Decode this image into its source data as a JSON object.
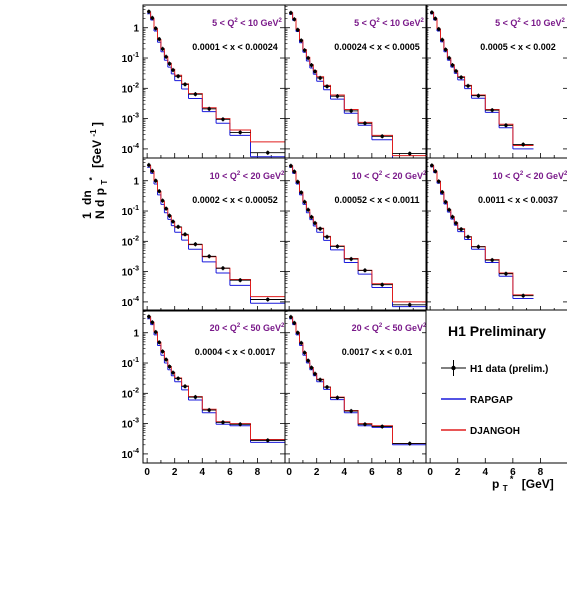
{
  "chart_data": {
    "type": "histogram-grid",
    "y_axis_label": "1/N dn/dp_T* [GeV^-1]",
    "x_axis_label": "p_T* [GeV]",
    "x_axis_text": "p",
    "x_axis_sub": "T",
    "x_axis_sup": "*",
    "x_axis_unit": "[GeV]",
    "y_axis_unit_text": "[GeV",
    "y_axis_unit_sup": "-1",
    "y_axis_unit_close": "]",
    "y_axis_num": "1",
    "y_axis_den": "N",
    "y_axis_dn": "dn",
    "y_axis_d": "d",
    "y_axis_p": "p",
    "y_axis_psub": "T",
    "y_axis_psup": "*",
    "xlim": [
      -0.3,
      10
    ],
    "ylim_log10": [
      -4.3,
      0.75
    ],
    "x_ticks": [
      0,
      2,
      4,
      6,
      8
    ],
    "y_tick_labels": [
      {
        "value": 1,
        "base": "1",
        "exp": ""
      },
      {
        "value": 0.1,
        "base": "10",
        "exp": "-1"
      },
      {
        "value": 0.01,
        "base": "10",
        "exp": "-2"
      },
      {
        "value": 0.001,
        "base": "10",
        "exp": "-3"
      },
      {
        "value": 0.0001,
        "base": "10",
        "exp": "-4"
      }
    ],
    "bin_edges": [
      0,
      0.25,
      0.5,
      0.75,
      1,
      1.25,
      1.5,
      1.75,
      2,
      2.5,
      3,
      4,
      5,
      6,
      7.5,
      10
    ],
    "series_names": [
      "H1 data (prelim.)",
      "RAPGAP",
      "DJANGOH"
    ],
    "series_colors": {
      "data": "#000000",
      "rapgap": "#1a1adc",
      "djangoh": "#e01e1e"
    },
    "panels": [
      {
        "q2_low": "5",
        "q2_high": "10",
        "q2_unit": "GeV",
        "x_low": "0.0001",
        "x_high": "0.00024",
        "empty_last_bin": false,
        "data": [
          3.4,
          2.1,
          0.95,
          0.42,
          0.2,
          0.11,
          0.065,
          0.04,
          0.025,
          0.0135,
          0.0064,
          0.0021,
          0.00095,
          0.00035,
          7.5e-05
        ],
        "rapgap": [
          2.9,
          1.8,
          0.78,
          0.33,
          0.16,
          0.085,
          0.05,
          0.03,
          0.018,
          0.0095,
          0.0046,
          0.0017,
          0.0007,
          0.00028,
          5.5e-05
        ],
        "djangoh": [
          3.3,
          2.05,
          0.92,
          0.41,
          0.2,
          0.11,
          0.067,
          0.042,
          0.027,
          0.014,
          0.0067,
          0.0023,
          0.001,
          0.00042,
          0.00017
        ]
      },
      {
        "q2_low": "5",
        "q2_high": "10",
        "q2_unit": "GeV",
        "x_low": "0.00024",
        "x_high": "0.0005",
        "empty_last_bin": false,
        "data": [
          3.1,
          1.9,
          0.85,
          0.38,
          0.18,
          0.1,
          0.058,
          0.036,
          0.022,
          0.0115,
          0.0055,
          0.0018,
          0.0007,
          0.00026,
          7e-05
        ],
        "rapgap": [
          2.8,
          1.75,
          0.75,
          0.32,
          0.155,
          0.08,
          0.047,
          0.029,
          0.017,
          0.009,
          0.0044,
          0.0015,
          0.0006,
          0.0002,
          4.5e-05
        ],
        "djangoh": [
          3.1,
          1.95,
          0.87,
          0.39,
          0.19,
          0.105,
          0.06,
          0.038,
          0.024,
          0.0125,
          0.006,
          0.002,
          0.00075,
          0.00028,
          6e-05
        ]
      },
      {
        "q2_low": "5",
        "q2_high": "10",
        "q2_unit": "GeV",
        "x_low": "0.0005",
        "x_high": "0.002",
        "empty_last_bin": true,
        "data": [
          3.2,
          2.0,
          0.9,
          0.4,
          0.19,
          0.1,
          0.058,
          0.037,
          0.023,
          0.012,
          0.0057,
          0.0019,
          0.0006,
          0.00014,
          0
        ],
        "rapgap": [
          2.9,
          1.8,
          0.78,
          0.34,
          0.16,
          0.085,
          0.05,
          0.031,
          0.019,
          0.0098,
          0.0047,
          0.0016,
          0.0005,
          0.0001,
          0
        ],
        "djangoh": [
          3.2,
          2.0,
          0.9,
          0.4,
          0.19,
          0.1,
          0.06,
          0.038,
          0.024,
          0.0125,
          0.006,
          0.002,
          0.00065,
          0.00013,
          0
        ]
      },
      {
        "q2_low": "10",
        "q2_high": "20",
        "q2_unit": "GeV",
        "x_low": "0.0002",
        "x_high": "0.00052",
        "empty_last_bin": false,
        "data": [
          3.3,
          2.1,
          1.0,
          0.45,
          0.22,
          0.12,
          0.07,
          0.045,
          0.03,
          0.017,
          0.008,
          0.0032,
          0.0013,
          0.00052,
          0.00012
        ],
        "rapgap": [
          2.8,
          1.75,
          0.78,
          0.34,
          0.165,
          0.088,
          0.053,
          0.033,
          0.02,
          0.011,
          0.0055,
          0.0021,
          0.0009,
          0.00035,
          9e-05
        ],
        "djangoh": [
          3.2,
          2.05,
          0.98,
          0.44,
          0.21,
          0.12,
          0.07,
          0.044,
          0.029,
          0.016,
          0.0078,
          0.0031,
          0.0013,
          0.00055,
          0.00015
        ]
      },
      {
        "q2_low": "10",
        "q2_high": "20",
        "q2_unit": "GeV",
        "x_low": "0.00052",
        "x_high": "0.0011",
        "empty_last_bin": false,
        "data": [
          3.1,
          2.0,
          0.92,
          0.41,
          0.2,
          0.11,
          0.063,
          0.04,
          0.026,
          0.014,
          0.0068,
          0.0026,
          0.0011,
          0.00037,
          8e-05
        ],
        "rapgap": [
          2.8,
          1.75,
          0.78,
          0.34,
          0.165,
          0.088,
          0.052,
          0.032,
          0.02,
          0.0107,
          0.0052,
          0.002,
          0.00083,
          0.0003,
          7e-05
        ],
        "djangoh": [
          3.1,
          2.0,
          0.93,
          0.42,
          0.2,
          0.11,
          0.065,
          0.041,
          0.027,
          0.0145,
          0.007,
          0.0027,
          0.0011,
          0.0004,
          0.0001
        ]
      },
      {
        "q2_low": "10",
        "q2_high": "20",
        "q2_unit": "GeV",
        "x_low": "0.0011",
        "x_high": "0.0037",
        "empty_last_bin": true,
        "data": [
          3.2,
          2.05,
          0.95,
          0.42,
          0.2,
          0.11,
          0.064,
          0.04,
          0.025,
          0.014,
          0.0066,
          0.0024,
          0.00085,
          0.00016,
          0
        ],
        "rapgap": [
          2.9,
          1.85,
          0.82,
          0.36,
          0.17,
          0.092,
          0.054,
          0.034,
          0.021,
          0.0115,
          0.0055,
          0.002,
          0.0007,
          0.00013,
          0
        ],
        "djangoh": [
          3.2,
          2.05,
          0.95,
          0.42,
          0.2,
          0.11,
          0.065,
          0.041,
          0.026,
          0.0142,
          0.0067,
          0.0025,
          0.0009,
          0.00017,
          0
        ]
      },
      {
        "q2_low": "20",
        "q2_high": "50",
        "q2_unit": "GeV",
        "x_low": "0.0004",
        "x_high": "0.0017",
        "empty_last_bin": false,
        "data": [
          3.4,
          2.2,
          1.05,
          0.48,
          0.24,
          0.13,
          0.076,
          0.048,
          0.031,
          0.017,
          0.0075,
          0.0028,
          0.0011,
          0.00095,
          0.00028
        ],
        "rapgap": [
          2.9,
          1.85,
          0.85,
          0.38,
          0.18,
          0.1,
          0.06,
          0.038,
          0.024,
          0.013,
          0.006,
          0.0023,
          0.00095,
          0.00085,
          0.00024
        ],
        "djangoh": [
          3.4,
          2.2,
          1.05,
          0.48,
          0.24,
          0.13,
          0.077,
          0.049,
          0.032,
          0.0175,
          0.0078,
          0.003,
          0.00115,
          0.001,
          0.0003
        ]
      },
      {
        "q2_low": "20",
        "q2_high": "50",
        "q2_unit": "GeV",
        "x_low": "0.0017",
        "x_high": "0.01",
        "empty_last_bin": false,
        "data": [
          3.3,
          2.1,
          1.0,
          0.46,
          0.22,
          0.12,
          0.07,
          0.044,
          0.028,
          0.016,
          0.0072,
          0.0026,
          0.00095,
          0.0008,
          0.00022
        ],
        "rapgap": [
          2.9,
          1.85,
          0.85,
          0.38,
          0.18,
          0.1,
          0.06,
          0.038,
          0.024,
          0.0135,
          0.0062,
          0.0023,
          0.00085,
          0.00075,
          0.0002
        ],
        "djangoh": [
          3.3,
          2.1,
          1.0,
          0.46,
          0.22,
          0.12,
          0.071,
          0.045,
          0.029,
          0.0162,
          0.0075,
          0.0027,
          0.001,
          0.00085,
          0.00022
        ]
      }
    ]
  },
  "legend": {
    "title": "H1 Preliminary",
    "items": [
      {
        "label": "H1 data (prelim.)",
        "kind": "data"
      },
      {
        "label": "RAPGAP",
        "kind": "rapgap"
      },
      {
        "label": "DJANGOH",
        "kind": "djangoh"
      }
    ]
  }
}
